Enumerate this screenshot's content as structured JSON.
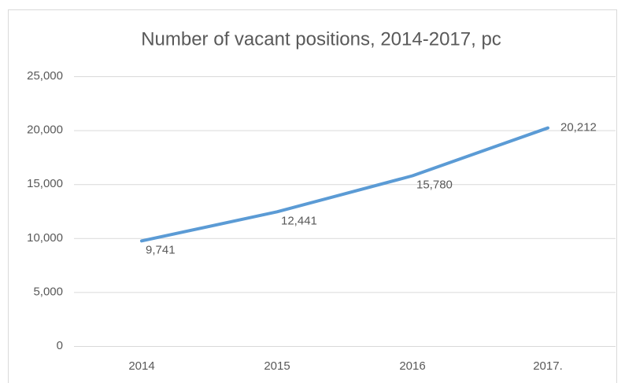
{
  "chart_data": {
    "type": "line",
    "title": "Number of vacant positions, 2014-2017, pc",
    "categories": [
      "2014",
      "2015",
      "2016",
      "2017."
    ],
    "series": [
      {
        "name": "Number of vacant positions",
        "color": "#5b9bd5",
        "values": [
          9741,
          12441,
          15780,
          20212
        ],
        "value_labels": [
          "9,741",
          "12,441",
          "15,780",
          "20,212"
        ]
      }
    ],
    "ylim": [
      0,
      25000
    ],
    "yticks": [
      0,
      {
        "value": 5000,
        "label": "5,000"
      },
      {
        "value": 10000,
        "label": "10,000"
      },
      {
        "value": 15000,
        "label": "15,000"
      },
      {
        "value": 20000,
        "label": "20,000"
      },
      {
        "value": 25000,
        "label": "25,000"
      }
    ],
    "grid": true
  }
}
